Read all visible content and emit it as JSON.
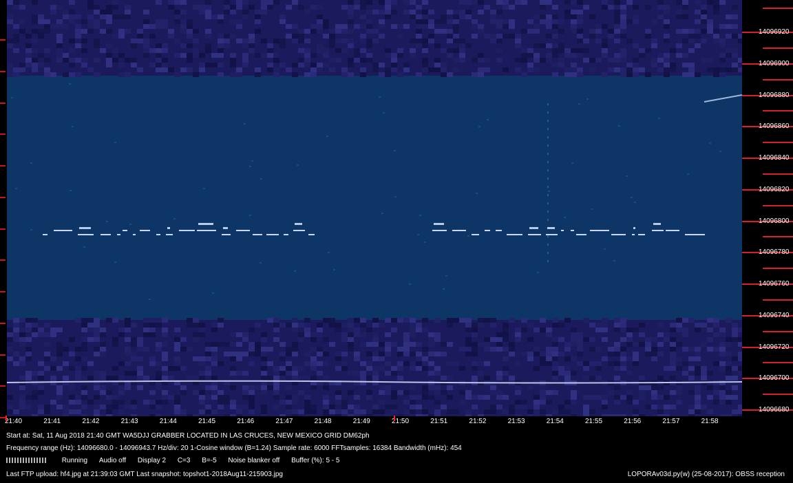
{
  "frequency_labels": [
    "14096920",
    "14096900",
    "14096880",
    "14096860",
    "14096840",
    "14096820",
    "14096800",
    "14096780",
    "14096760",
    "14096740",
    "14096720",
    "14096700",
    "14096680"
  ],
  "time_labels": [
    "21:40",
    "21:41",
    "21:42",
    "21:43",
    "21:44",
    "21:45",
    "21:46",
    "21:47",
    "21:48",
    "21:49",
    "21:50",
    "21:51",
    "21:52",
    "21:53",
    "21:54",
    "21:55",
    "21:56",
    "21:57",
    "21:58"
  ],
  "status": {
    "line1": "Start at: Sat, 11 Aug 2018 21:40 GMT     WA5DJJ GRABBER LOCATED IN LAS CRUCES, NEW MEXICO GRID DM62ph",
    "line2": "Frequency range (Hz): 14096680.0 - 14096943.7    Hz/div: 20    1-Cosine window (B=1.24)    Sample rate: 6000    FFTsamples: 16384    Bandwidth (mHz): 454",
    "line3_items": [
      "Running",
      "Audio off",
      "Display 2",
      "C=3",
      "B=-5",
      "Noise blanker off",
      "Buffer (%): 5 - 5"
    ],
    "line4": "Last FTP upload: hf4.jpg at 21:39:03 GMT    Last snapshot: topshot1-2018Aug11-215903.jpg",
    "version": "LOPORAv03d.py(w) (25-08-2017): OBSS reception"
  },
  "colors": {
    "noise_dark": "#1a1a5c",
    "band_mid": "#0d3566",
    "trace": "#d8e4ff",
    "tick_red": "#d8202a"
  }
}
